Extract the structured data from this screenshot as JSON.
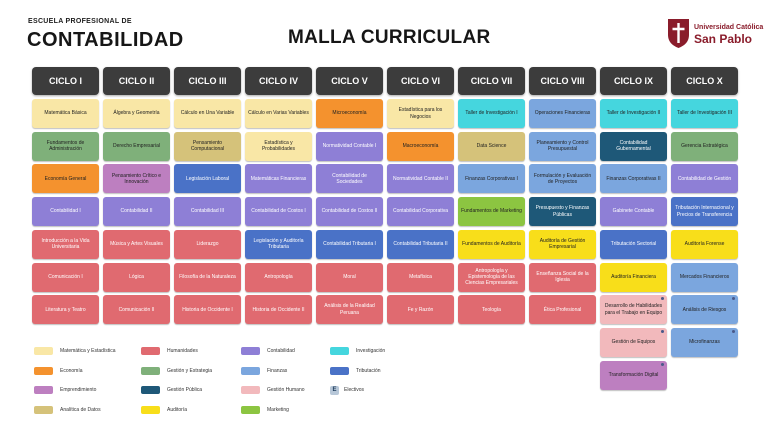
{
  "header": {
    "school_line": "ESCUELA PROFESIONAL DE",
    "school_name": "CONTABILIDAD",
    "title": "MALLA CURRICULAR",
    "logo_line1": "Universidad Católica",
    "logo_line2": "San Pablo"
  },
  "colors": {
    "matematica": "#f9e7a6",
    "humanidades": "#e06a70",
    "contabilidad": "#8e7fd6",
    "investigacion": "#45d6de",
    "economia": "#f4922e",
    "gestion_estrategia": "#7fb07a",
    "finanzas": "#7ba6de",
    "tributacion": "#4a72c7",
    "emprendimiento": "#bd7fc0",
    "gestion_publica": "#1e5878",
    "gestion_humano": "#f2b9bc",
    "electivos": "#b7c7d8",
    "analitica": "#d5c27a",
    "auditoria": "#f8de1a",
    "marketing": "#8cc541"
  },
  "ciclos": [
    "CICLO I",
    "CICLO II",
    "CICLO III",
    "CICLO IV",
    "CICLO V",
    "CICLO VI",
    "CICLO VII",
    "CICLO VIII",
    "CICLO IX",
    "CICLO X"
  ],
  "columns": [
    [
      {
        "t": "Matemática Básica",
        "c": "matematica"
      },
      {
        "t": "Fundamentos de Administración",
        "c": "gestion_estrategia"
      },
      {
        "t": "Economía General",
        "c": "economia"
      },
      {
        "t": "Contabilidad I",
        "c": "contabilidad"
      },
      {
        "t": "Introducción a la Vida Universitaria",
        "c": "humanidades"
      },
      {
        "t": "Comunicación I",
        "c": "humanidades"
      },
      {
        "t": "Literatura y Teatro",
        "c": "humanidades"
      }
    ],
    [
      {
        "t": "Álgebra y Geometría",
        "c": "matematica"
      },
      {
        "t": "Derecho Empresarial",
        "c": "gestion_estrategia"
      },
      {
        "t": "Pensamiento Crítico e Innovación",
        "c": "emprendimiento"
      },
      {
        "t": "Contabilidad II",
        "c": "contabilidad"
      },
      {
        "t": "Música y Artes Visuales",
        "c": "humanidades"
      },
      {
        "t": "Lógica",
        "c": "humanidades"
      },
      {
        "t": "Comunicación II",
        "c": "humanidades"
      }
    ],
    [
      {
        "t": "Cálculo en Una Variable",
        "c": "matematica"
      },
      {
        "t": "Pensamiento Computacional",
        "c": "analitica"
      },
      {
        "t": "Legislación Laboral",
        "c": "tributacion"
      },
      {
        "t": "Contabilidad III",
        "c": "contabilidad"
      },
      {
        "t": "Liderazgo",
        "c": "humanidades"
      },
      {
        "t": "Filosofía de la Naturaleza",
        "c": "humanidades"
      },
      {
        "t": "Historia de Occidente I",
        "c": "humanidades"
      }
    ],
    [
      {
        "t": "Cálculo en Varias Variables",
        "c": "matematica"
      },
      {
        "t": "Estadística y Probabilidades",
        "c": "matematica"
      },
      {
        "t": "Matemáticas Financieras",
        "c": "contabilidad"
      },
      {
        "t": "Contabilidad de Costos I",
        "c": "contabilidad"
      },
      {
        "t": "Legislación y Auditoría Tributaria",
        "c": "tributacion"
      },
      {
        "t": "Antropología",
        "c": "humanidades"
      },
      {
        "t": "Historia de Occidente II",
        "c": "humanidades"
      }
    ],
    [
      {
        "t": "Microeconomía",
        "c": "economia"
      },
      {
        "t": "Normatividad Contable I",
        "c": "contabilidad"
      },
      {
        "t": "Contabilidad de Sociedades",
        "c": "contabilidad"
      },
      {
        "t": "Contabilidad de Costos II",
        "c": "contabilidad"
      },
      {
        "t": "Contabilidad Tributaria I",
        "c": "tributacion"
      },
      {
        "t": "Moral",
        "c": "humanidades"
      },
      {
        "t": "Análisis de la Realidad Peruana",
        "c": "humanidades"
      }
    ],
    [
      {
        "t": "Estadística para los Negocios",
        "c": "matematica"
      },
      {
        "t": "Macroeconomía",
        "c": "economia"
      },
      {
        "t": "Normatividad Contable II",
        "c": "contabilidad"
      },
      {
        "t": "Contabilidad Corporativa",
        "c": "contabilidad"
      },
      {
        "t": "Contabilidad Tributaria II",
        "c": "tributacion"
      },
      {
        "t": "Metafísica",
        "c": "humanidades"
      },
      {
        "t": "Fe y Razón",
        "c": "humanidades"
      }
    ],
    [
      {
        "t": "Taller de Investigación I",
        "c": "investigacion"
      },
      {
        "t": "Data Science",
        "c": "analitica"
      },
      {
        "t": "Finanzas Corporativas I",
        "c": "finanzas"
      },
      {
        "t": "Fundamentos de Marketing",
        "c": "marketing"
      },
      {
        "t": "Fundamentos de Auditoría",
        "c": "auditoria"
      },
      {
        "t": "Antropología y Epistemología de las Ciencias Empresariales",
        "c": "humanidades"
      },
      {
        "t": "Teología",
        "c": "humanidades"
      }
    ],
    [
      {
        "t": "Operaciones Financieras",
        "c": "finanzas"
      },
      {
        "t": "Planeamiento y Control Presupuestal",
        "c": "finanzas"
      },
      {
        "t": "Formulación y Evaluación de Proyectos",
        "c": "finanzas"
      },
      {
        "t": "Presupuesto y Finanzas Públicas",
        "c": "gestion_publica"
      },
      {
        "t": "Auditoría de Gestión Empresarial",
        "c": "auditoria"
      },
      {
        "t": "Enseñanza Social de la Iglesia",
        "c": "humanidades"
      },
      {
        "t": "Ética Profesional",
        "c": "humanidades"
      }
    ],
    [
      {
        "t": "Taller de Investigación II",
        "c": "investigacion"
      },
      {
        "t": "Contabilidad Gubernamental",
        "c": "gestion_publica"
      },
      {
        "t": "Finanzas Corporativas II",
        "c": "finanzas"
      },
      {
        "t": "Gabinete Contable",
        "c": "contabilidad"
      },
      {
        "t": "Tributación Sectorial",
        "c": "tributacion"
      },
      {
        "t": "Auditoría Financiera",
        "c": "auditoria"
      },
      {
        "t": "Desarrollo de Habilidades para el Trabajo en Equipo",
        "c": "gestion_humano",
        "e": true
      },
      {
        "t": "Gestión de Equipos",
        "c": "gestion_humano",
        "e": true
      },
      {
        "t": "Transformación Digital",
        "c": "emprendimiento",
        "e": true
      }
    ],
    [
      {
        "t": "Taller de Investigación III",
        "c": "investigacion"
      },
      {
        "t": "Gerencia Estratégica",
        "c": "gestion_estrategia"
      },
      {
        "t": "Contabilidad de Gestión",
        "c": "contabilidad"
      },
      {
        "t": "Tributación Internacional y Precios de Transferencia",
        "c": "tributacion"
      },
      {
        "t": "Auditoría Forense",
        "c": "auditoria"
      },
      {
        "t": "Mercados Financieros",
        "c": "finanzas"
      },
      {
        "t": "Análisis de Riesgos",
        "c": "finanzas",
        "e": true
      },
      {
        "t": "Microfinanzas",
        "c": "finanzas",
        "e": true
      }
    ]
  ],
  "legend": [
    {
      "label": "Matemática y Estadística",
      "c": "matematica"
    },
    {
      "label": "Humanidades",
      "c": "humanidades"
    },
    {
      "label": "Contabilidad",
      "c": "contabilidad"
    },
    {
      "label": "Investigación",
      "c": "investigacion"
    },
    {
      "label": "Economía",
      "c": "economia"
    },
    {
      "label": "Gestión y Estrategia",
      "c": "gestion_estrategia"
    },
    {
      "label": "Finanzas",
      "c": "finanzas"
    },
    {
      "label": "Tributación",
      "c": "tributacion"
    },
    {
      "label": "Emprendimiento",
      "c": "emprendimiento"
    },
    {
      "label": "Gestión Pública",
      "c": "gestion_publica"
    },
    {
      "label": "Gestión Humano",
      "c": "gestion_humano"
    },
    {
      "label": "Electivos",
      "c": "electivos",
      "mark": "E"
    },
    {
      "label": "Analítica de Datos",
      "c": "analitica"
    },
    {
      "label": "Auditoría",
      "c": "auditoria"
    },
    {
      "label": "Marketing",
      "c": "marketing"
    }
  ]
}
